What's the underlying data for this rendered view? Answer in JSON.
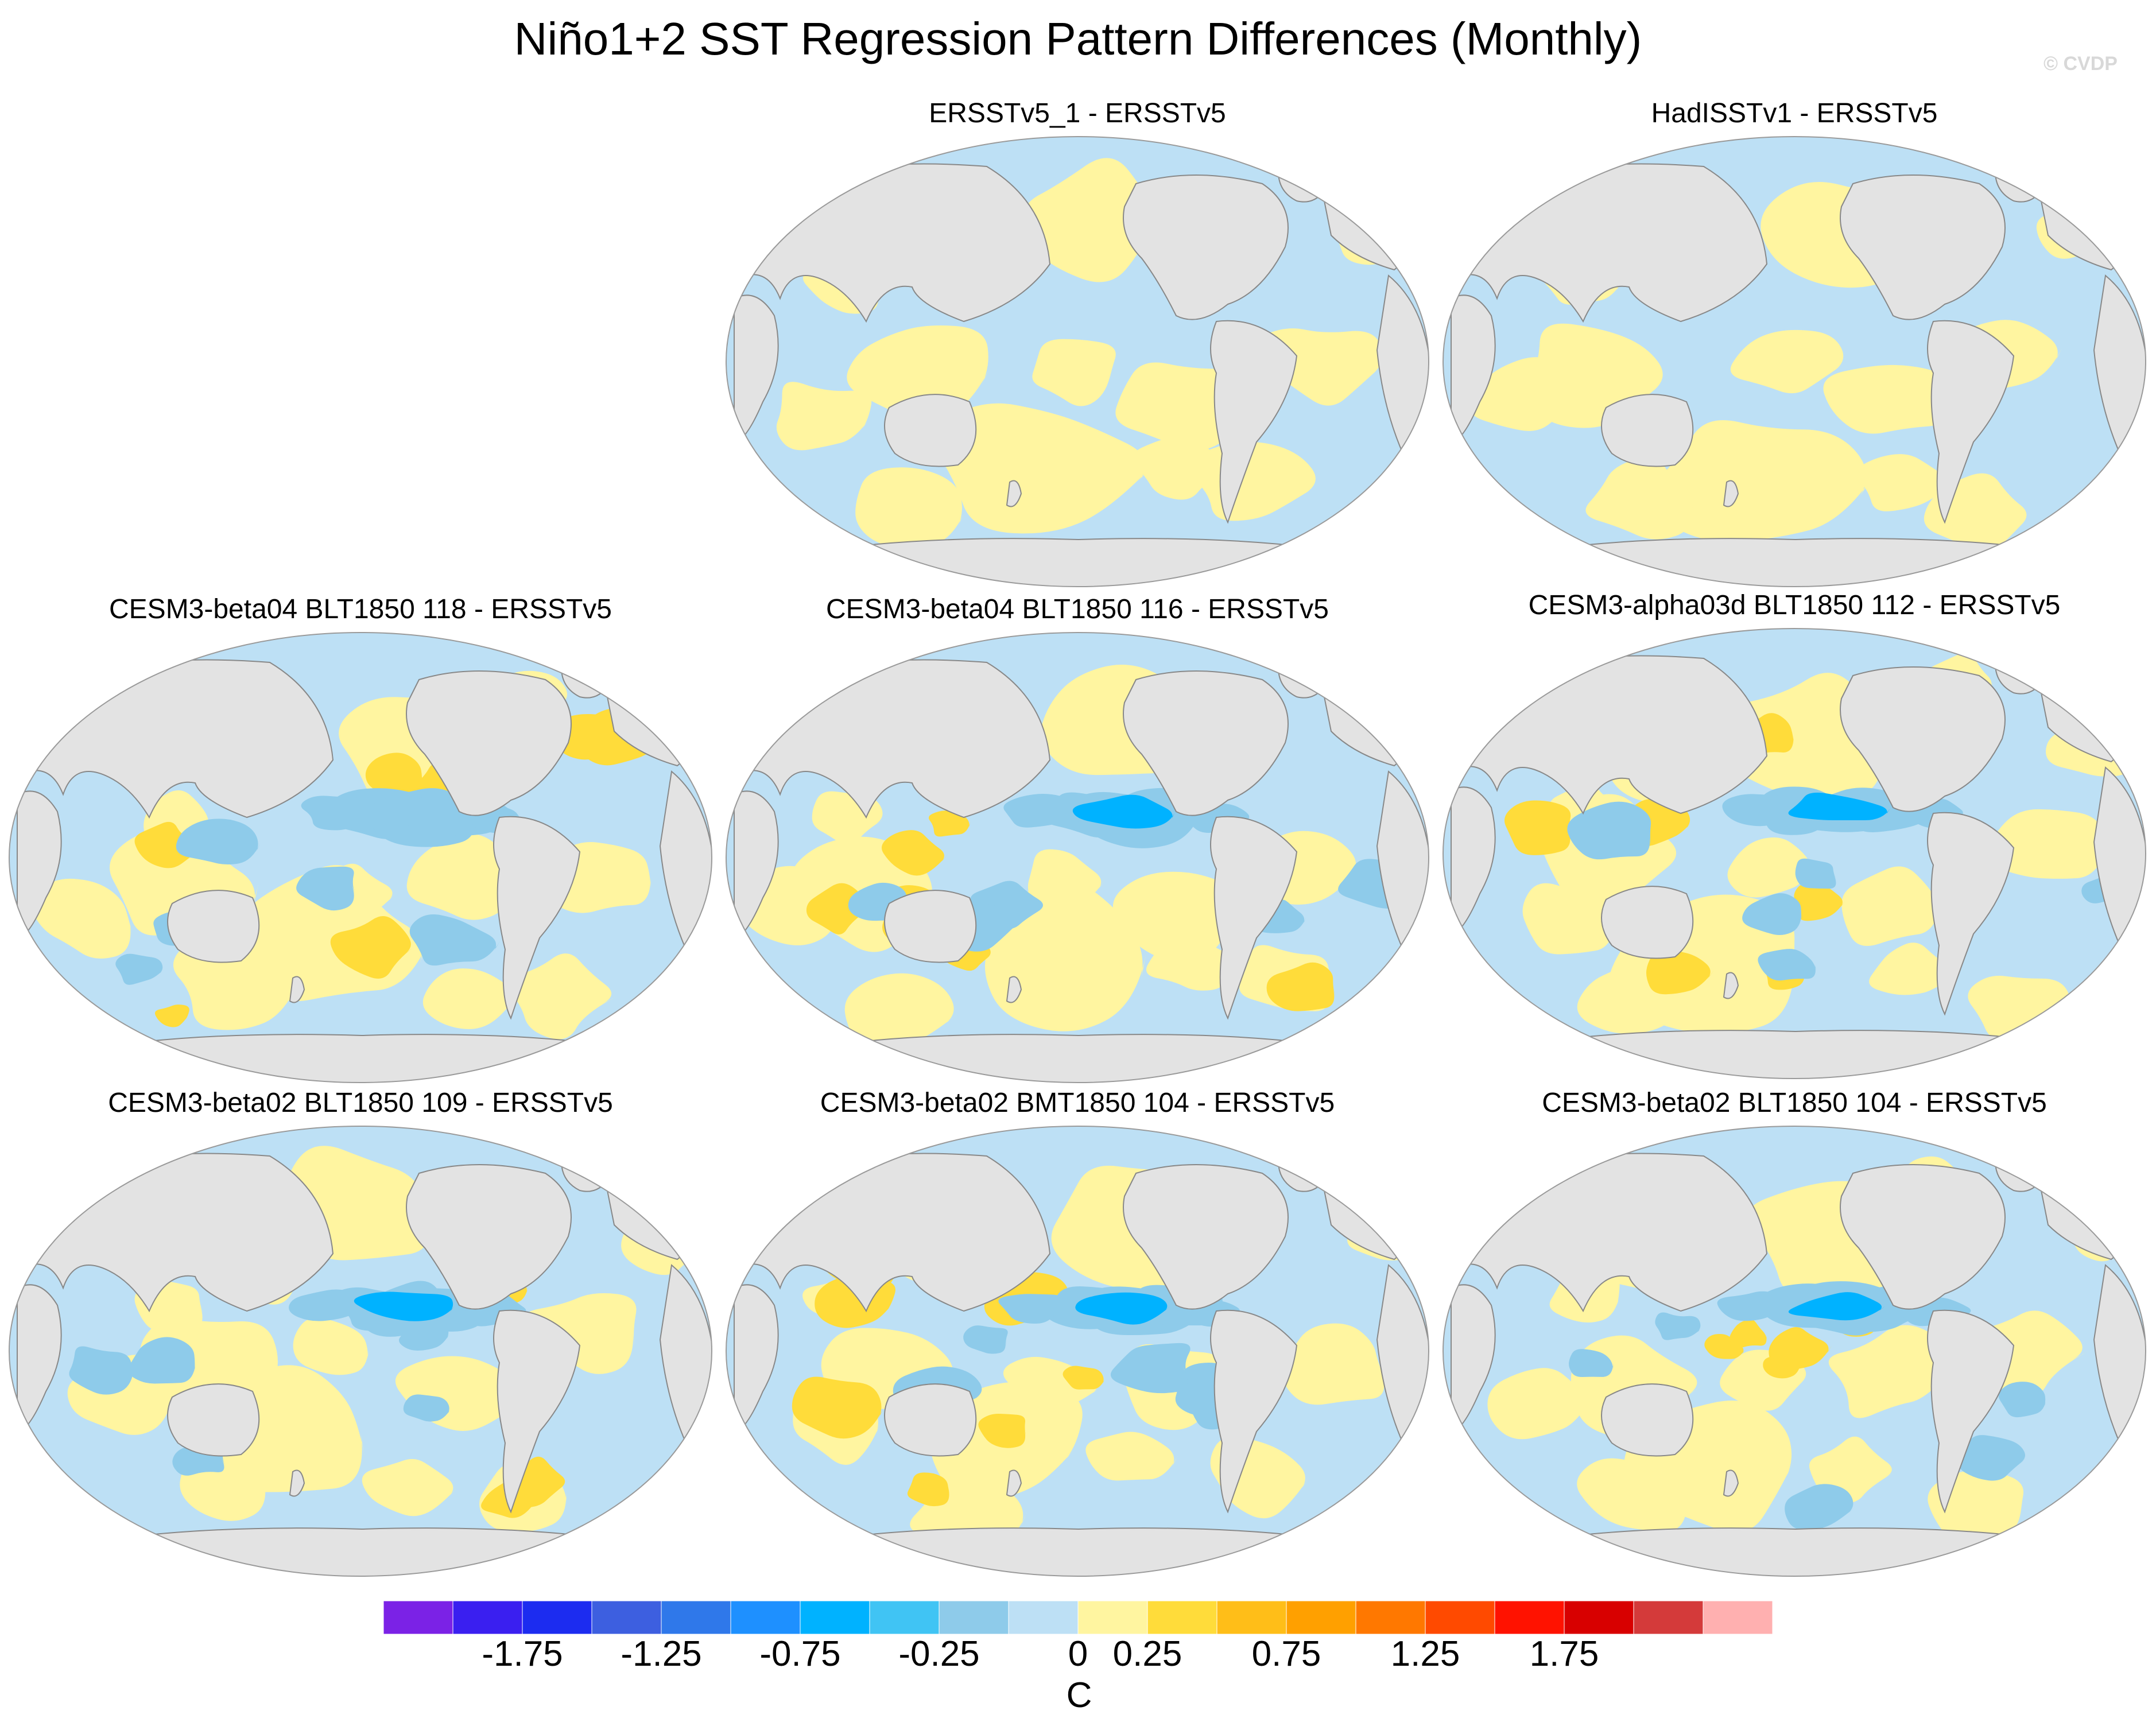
{
  "title": "Niño1+2 SST Regression Pattern Differences (Monthly)",
  "watermark": "© CVDP",
  "colors": {
    "land": "#e3e3e3",
    "coast": "#888888",
    "near_zero_neg": "#bde0f5",
    "near_zero_pos": "#fff5a0"
  },
  "panels": [
    {
      "title": "ERSSTv5_1 - ERSSTv5",
      "theme": "small"
    },
    {
      "title": "HadISSTv1 - ERSSTv5",
      "theme": "small"
    },
    {
      "title": "CESM3-beta04 BLT1850 118 - ERSSTv5",
      "theme": "model"
    },
    {
      "title": "CESM3-beta04 BLT1850 116 - ERSSTv5",
      "theme": "model"
    },
    {
      "title": "CESM3-alpha03d BLT1850 112 - ERSSTv5",
      "theme": "model"
    },
    {
      "title": "CESM3-beta02 BLT1850 109 - ERSSTv5",
      "theme": "model"
    },
    {
      "title": "CESM3-beta02 BMT1850 104 - ERSSTv5",
      "theme": "model"
    },
    {
      "title": "CESM3-beta02 BLT1850 104 - ERSSTv5",
      "theme": "model"
    }
  ],
  "chart_data": {
    "type": "heatmap",
    "title": "Niño1+2 SST Regression Pattern Differences (Monthly)",
    "units": "C",
    "projection": "Robinson, Pacific-centered",
    "colorbar": {
      "colors": [
        "#7b22e6",
        "#3a1ff0",
        "#1c2cf0",
        "#3d5fe0",
        "#2f78ea",
        "#1e90ff",
        "#00b2ff",
        "#40c4f4",
        "#8ecbea",
        "#bde0f5",
        "#fff5a0",
        "#ffdc3a",
        "#ffbe18",
        "#ffa000",
        "#ff7800",
        "#ff4a00",
        "#ff1200",
        "#d80000",
        "#d43a3a",
        "#ffb0b0"
      ],
      "tick_labels": [
        "-1.75",
        "-1.25",
        "-0.75",
        "-0.25",
        "0",
        "0.25",
        "0.75",
        "1.25",
        "1.75"
      ],
      "tick_boundaries": [
        2,
        4,
        6,
        8,
        10,
        11,
        13,
        15,
        17
      ]
    }
  }
}
